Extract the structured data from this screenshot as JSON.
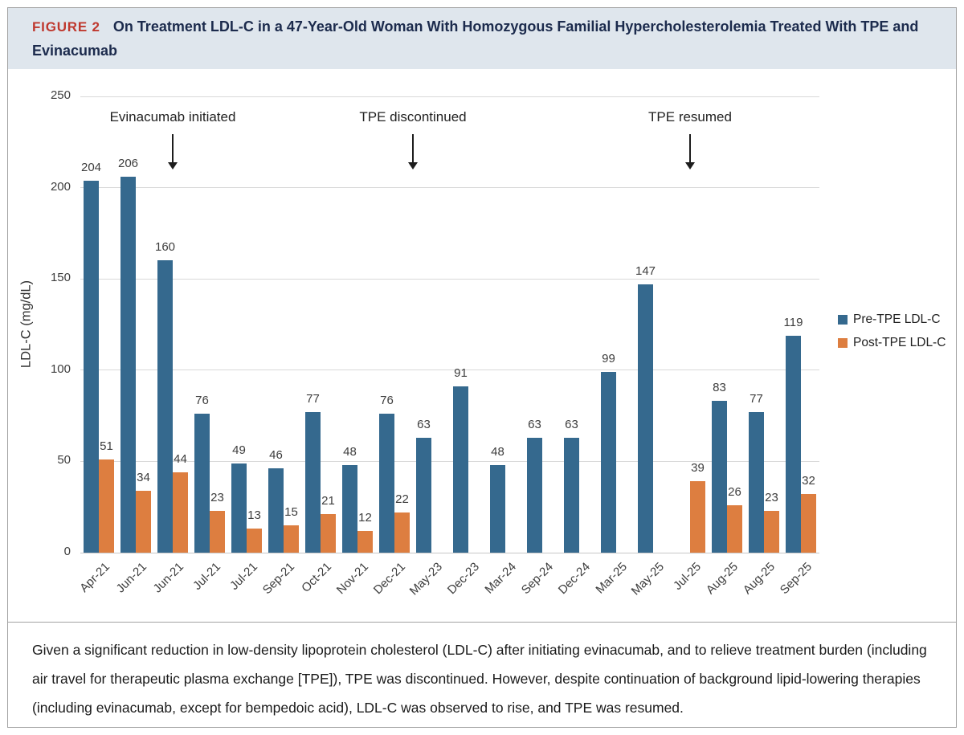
{
  "figure": {
    "label": "FIGURE 2",
    "title": "On Treatment LDL-C in a 47-Year-Old Woman With Homozygous Familial Hypercholesterolemia Treated With TPE and Evinacumab"
  },
  "caption": "Given a significant reduction in low-density lipoprotein cholesterol (LDL-C) after initiating evinacumab, and to relieve treatment burden (including air travel for therapeutic plasma exchange [TPE]), TPE was discontinued. However, despite continuation of background lipid-lowering therapies (including evinacumab, except for bempedoic acid), LDL-C was observed to rise, and TPE was resumed.",
  "colors": {
    "pre_tpe_bar": "#35698e",
    "post_tpe_bar": "#dd7e40",
    "header_background": "#dfe6ed",
    "figure_label_red": "#bf382e",
    "title_navy": "#1c2b4d",
    "gridline": "#d9d9d9",
    "axis_line": "#c8c8c8"
  },
  "chart_data": {
    "type": "bar",
    "title": "",
    "xlabel": "",
    "ylabel": "LDL-C  (mg/dL)",
    "ylim": [
      0,
      250
    ],
    "yticks": [
      0,
      50,
      100,
      150,
      200,
      250
    ],
    "grid": true,
    "legend_position": "right",
    "categories": [
      "Apr-21",
      "Jun-21",
      "Jun-21",
      "Jul-21",
      "Jul-21",
      "Sep-21",
      "Oct-21",
      "Nov-21",
      "Dec-21",
      "May-23",
      "Dec-23",
      "Mar-24",
      "Sep-24",
      "Dec-24",
      "Mar-25",
      "May-25",
      "Jul-25",
      "Aug-25",
      "Aug-25",
      "Sep-25"
    ],
    "series": [
      {
        "name": "Pre-TPE LDL-C",
        "color": "#35698e",
        "values": [
          204,
          206,
          160,
          76,
          49,
          46,
          77,
          48,
          76,
          63,
          91,
          48,
          63,
          63,
          99,
          147,
          null,
          83,
          77,
          119
        ]
      },
      {
        "name": "Post-TPE LDL-C",
        "color": "#dd7e40",
        "values": [
          51,
          34,
          44,
          23,
          13,
          15,
          21,
          12,
          22,
          null,
          null,
          null,
          null,
          null,
          null,
          null,
          39,
          26,
          23,
          32
        ]
      }
    ],
    "annotations": [
      {
        "text": "Evinacumab initiated",
        "x": 2.5
      },
      {
        "text": "TPE discontinued",
        "x": 9.0
      },
      {
        "text": "TPE resumed",
        "x": 16.5
      }
    ]
  }
}
